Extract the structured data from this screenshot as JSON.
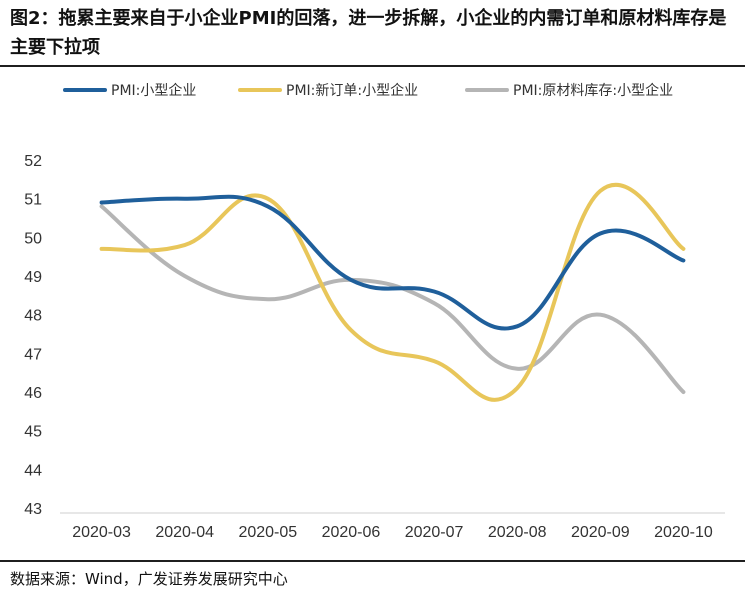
{
  "title": "图2：拖累主要来自于小企业PMI的回落，进一步拆解，小企业的内需订单和原材料库存是主要下拉项",
  "source": "数据来源：Wind，广发证券发展研究中心",
  "chart_data": {
    "type": "line",
    "title": "图2：拖累主要来自于小企业PMI的回落，进一步拆解，小企业的内需订单和原材料库存是主要下拉项",
    "categories": [
      "2020-03",
      "2020-04",
      "2020-05",
      "2020-06",
      "2020-07",
      "2020-08",
      "2020-09",
      "2020-10"
    ],
    "ylim": [
      43,
      52
    ],
    "yticks": [
      43,
      44,
      45,
      46,
      47,
      48,
      49,
      50,
      51,
      52
    ],
    "xlabel": "",
    "ylabel": "",
    "grid": false,
    "legend_position": "top",
    "series": [
      {
        "name": "PMI:小型企业",
        "color": "#1f5f9b",
        "values": [
          50.9,
          51.0,
          50.8,
          48.9,
          48.6,
          47.7,
          50.1,
          49.4
        ]
      },
      {
        "name": "PMI:新订单:小型企业",
        "color": "#e8c65a",
        "values": [
          49.7,
          49.8,
          51.0,
          47.6,
          46.8,
          46.1,
          51.2,
          49.7
        ]
      },
      {
        "name": "PMI:原材料库存:小型企业",
        "color": "#b5b5b5",
        "values": [
          50.8,
          49.0,
          48.4,
          48.9,
          48.3,
          46.6,
          48.0,
          46.0
        ]
      }
    ]
  }
}
